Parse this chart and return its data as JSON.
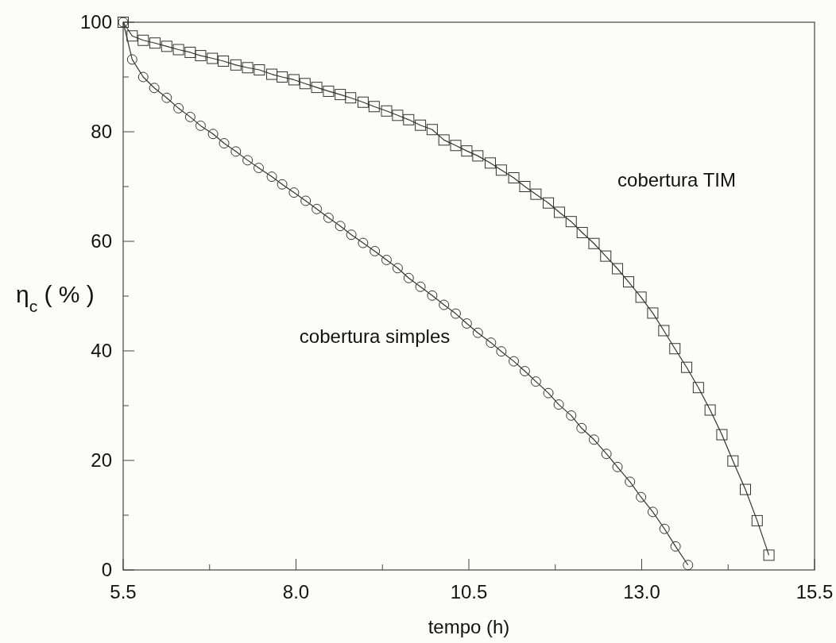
{
  "chart_data": {
    "type": "line",
    "xlabel": "tempo (h)",
    "ylabel": "η$_{c}$ ( % )",
    "xlim": [
      5.5,
      15.5
    ],
    "xticks": [
      5.5,
      {
        "value": 6.75,
        "label": null
      },
      {
        "value": 8,
        "label": "8.0"
      },
      {
        "value": 9.25,
        "label": null
      },
      10.5,
      {
        "value": 11.75,
        "label": null
      },
      {
        "value": 13,
        "label": "13.0"
      },
      {
        "value": 14.25,
        "label": null
      },
      15.5
    ],
    "ylim": [
      0,
      100
    ],
    "yticks": [
      0,
      {
        "value": 10,
        "label": null
      },
      20,
      {
        "value": 30,
        "label": null
      },
      40,
      {
        "value": 50,
        "label": null
      },
      60,
      {
        "value": 70,
        "label": null
      },
      80,
      {
        "value": 90,
        "label": null
      },
      100
    ],
    "grid": false,
    "line_style": "solid",
    "series": [
      {
        "name": "cobertura simples",
        "color": "#333333",
        "marker": "circle",
        "x": [
          5.5,
          5.63,
          5.79,
          5.95,
          6.13,
          6.3,
          6.47,
          6.62,
          6.8,
          6.96,
          7.13,
          7.3,
          7.46,
          7.65,
          7.8,
          7.97,
          8.14,
          8.3,
          8.47,
          8.64,
          8.8,
          8.97,
          9.14,
          9.31,
          9.47,
          9.63,
          9.8,
          9.97,
          10.14,
          10.31,
          10.47,
          10.63,
          10.82,
          10.97,
          11.15,
          11.31,
          11.47,
          11.65,
          11.8,
          11.98,
          12.13,
          12.31,
          12.49,
          12.65,
          12.83,
          12.99,
          13.16,
          13.33,
          13.49,
          13.67
        ],
        "values": [
          100,
          93.2,
          90.0,
          88.0,
          86.2,
          84.3,
          82.7,
          81.1,
          79.6,
          77.9,
          76.4,
          74.8,
          73.4,
          71.8,
          70.4,
          68.9,
          67.4,
          65.9,
          64.3,
          62.8,
          61.2,
          59.7,
          58.2,
          56.6,
          55.1,
          53.3,
          51.7,
          50.1,
          48.4,
          46.8,
          45.0,
          43.3,
          41.5,
          39.9,
          38.1,
          36.3,
          34.4,
          32.3,
          30.2,
          28.2,
          25.9,
          23.8,
          21.2,
          18.8,
          16.1,
          13.3,
          10.6,
          7.5,
          4.3,
          0.9
        ]
      },
      {
        "name": "cobertura TIM",
        "color": "#333333",
        "marker": "square",
        "x": [
          5.5,
          5.63,
          5.79,
          5.96,
          6.13,
          6.3,
          6.47,
          6.62,
          6.79,
          6.95,
          7.13,
          7.3,
          7.47,
          7.65,
          7.8,
          7.97,
          8.13,
          8.3,
          8.47,
          8.64,
          8.79,
          8.97,
          9.13,
          9.31,
          9.47,
          9.63,
          9.8,
          9.97,
          10.14,
          10.31,
          10.47,
          10.63,
          10.81,
          10.97,
          11.15,
          11.31,
          11.47,
          11.65,
          11.81,
          11.98,
          12.14,
          12.31,
          12.48,
          12.65,
          12.81,
          12.99,
          13.16,
          13.32,
          13.48,
          13.65,
          13.82,
          13.99,
          14.16,
          14.32,
          14.5,
          14.67,
          14.84
        ],
        "values": [
          100,
          97.5,
          96.7,
          96.2,
          95.6,
          95.0,
          94.5,
          93.9,
          93.4,
          92.9,
          92.2,
          91.7,
          91.3,
          90.5,
          90.0,
          89.5,
          88.8,
          88.1,
          87.4,
          86.8,
          86.2,
          85.4,
          84.6,
          83.8,
          83.0,
          82.2,
          81.2,
          80.4,
          78.5,
          77.5,
          76.5,
          75.6,
          74.3,
          73.0,
          71.6,
          70.0,
          68.6,
          67.0,
          65.3,
          63.6,
          61.6,
          59.6,
          57.3,
          55.0,
          52.6,
          49.8,
          46.9,
          43.7,
          40.4,
          37.0,
          33.3,
          29.2,
          24.7,
          19.9,
          14.7,
          9.0,
          2.7
        ]
      }
    ]
  }
}
